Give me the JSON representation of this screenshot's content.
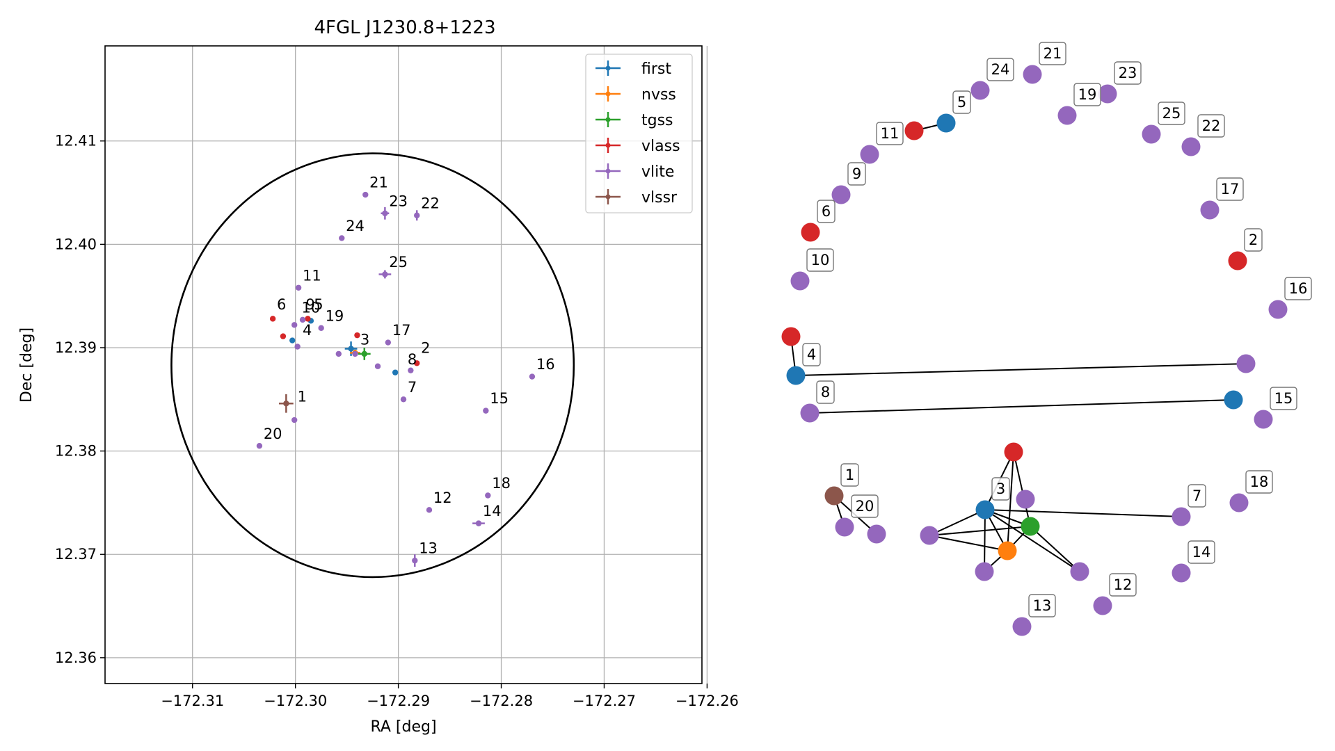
{
  "colors": {
    "first": "#1f77b4",
    "nvss": "#ff7f0e",
    "tgss": "#2ca02c",
    "vlass": "#d62728",
    "vlite": "#9467bd",
    "vlssr": "#8c564b"
  },
  "chart_data": [
    {
      "type": "scatter",
      "title": "4FGL J1230.8+1223",
      "xlabel": "RA [deg]",
      "ylabel": "Dec [deg]",
      "xlim": [
        -172.3185,
        -172.2605
      ],
      "ylim": [
        12.3575,
        12.4192
      ],
      "xticks": [
        -172.31,
        -172.3,
        -172.29,
        -172.28,
        -172.27,
        -172.26
      ],
      "xtick_labels": [
        "−172.31",
        "−172.30",
        "−172.29",
        "−172.28",
        "−172.27",
        "−172.26"
      ],
      "yticks": [
        12.36,
        12.37,
        12.38,
        12.39,
        12.4,
        12.41
      ],
      "ytick_labels": [
        "12.36",
        "12.37",
        "12.38",
        "12.39",
        "12.40",
        "12.41"
      ],
      "grid": true,
      "legend": "top-right",
      "ellipse": {
        "center": [
          -172.2925,
          12.3883
        ],
        "semi_axis_ra": 0.01955,
        "semi_axis_dec": 0.0205
      },
      "series": [
        {
          "name": "first",
          "points": [
            {
              "x": -172.2946,
              "y": 12.3899,
              "xerr": 0.0006,
              "yerr": 0.0007
            },
            {
              "x": -172.2903,
              "y": 12.3876
            },
            {
              "x": -172.3003,
              "y": 12.3907
            },
            {
              "x": -172.2985,
              "y": 12.3926
            }
          ]
        },
        {
          "name": "nvss",
          "points": [
            {
              "x": -172.2942,
              "y": 12.3895,
              "xerr": 0.0005,
              "yerr": 0.0003
            }
          ]
        },
        {
          "name": "tgss",
          "points": [
            {
              "x": -172.2933,
              "y": 12.3894,
              "xerr": 0.0006,
              "yerr": 0.0006
            }
          ]
        },
        {
          "name": "vlass",
          "points": [
            {
              "x": -172.294,
              "y": 12.3912
            },
            {
              "x": -172.2882,
              "y": 12.3885
            },
            {
              "x": -172.3012,
              "y": 12.3911
            },
            {
              "x": -172.3022,
              "y": 12.3928
            },
            {
              "x": -172.2988,
              "y": 12.3928
            }
          ]
        },
        {
          "name": "vlite",
          "points": [
            {
              "x": -172.2942,
              "y": 12.3894
            },
            {
              "x": -172.2958,
              "y": 12.3894
            },
            {
              "x": -172.292,
              "y": 12.3882
            },
            {
              "x": -172.2888,
              "y": 12.3878
            },
            {
              "x": -172.2998,
              "y": 12.3901
            },
            {
              "x": -172.3001,
              "y": 12.383
            },
            {
              "x": -172.3035,
              "y": 12.3805
            },
            {
              "x": -172.2895,
              "y": 12.385
            },
            {
              "x": -172.2815,
              "y": 12.3839
            },
            {
              "x": -172.277,
              "y": 12.3872
            },
            {
              "x": -172.291,
              "y": 12.3905
            },
            {
              "x": -172.2975,
              "y": 12.3919
            },
            {
              "x": -172.2997,
              "y": 12.3958
            },
            {
              "x": -172.3001,
              "y": 12.3922
            },
            {
              "x": -172.2993,
              "y": 12.3927
            },
            {
              "x": -172.2913,
              "y": 12.3971,
              "xerr": 0.0006,
              "yerr": 0.0004
            },
            {
              "x": -172.2955,
              "y": 12.4006
            },
            {
              "x": -172.2913,
              "y": 12.403,
              "xerr": 0.0004,
              "yerr": 0.0006
            },
            {
              "x": -172.2882,
              "y": 12.4028,
              "yerr": 0.0005
            },
            {
              "x": -172.2932,
              "y": 12.4048
            },
            {
              "x": -172.287,
              "y": 12.3743
            },
            {
              "x": -172.2813,
              "y": 12.3757
            },
            {
              "x": -172.2822,
              "y": 12.373,
              "xerr": 0.0006
            },
            {
              "x": -172.2884,
              "y": 12.3694,
              "yerr": 0.0006
            }
          ]
        },
        {
          "name": "vlssr",
          "points": [
            {
              "x": -172.3009,
              "y": 12.3846,
              "xerr": 0.0007,
              "yerr": 0.0009
            }
          ]
        }
      ],
      "annotations": [
        {
          "text": "1",
          "x": -172.2998,
          "y": 12.3848
        },
        {
          "text": "2",
          "x": -172.2878,
          "y": 12.3895
        },
        {
          "text": "3",
          "x": -172.2937,
          "y": 12.3903
        },
        {
          "text": "4",
          "x": -172.2993,
          "y": 12.3912
        },
        {
          "text": "5",
          "x": -172.2982,
          "y": 12.3937
        },
        {
          "text": "6",
          "x": -172.3018,
          "y": 12.3937
        },
        {
          "text": "7",
          "x": -172.2891,
          "y": 12.3857
        },
        {
          "text": "8",
          "x": -172.2891,
          "y": 12.3884
        },
        {
          "text": "9",
          "x": -172.299,
          "y": 12.3937
        },
        {
          "text": "10",
          "x": -172.2994,
          "y": 12.3934
        },
        {
          "text": "11",
          "x": -172.2993,
          "y": 12.3965
        },
        {
          "text": "12",
          "x": -172.2866,
          "y": 12.375
        },
        {
          "text": "13",
          "x": -172.288,
          "y": 12.3701
        },
        {
          "text": "14",
          "x": -172.2818,
          "y": 12.3737
        },
        {
          "text": "15",
          "x": -172.2811,
          "y": 12.3846
        },
        {
          "text": "16",
          "x": -172.2766,
          "y": 12.3879
        },
        {
          "text": "17",
          "x": -172.2906,
          "y": 12.3912
        },
        {
          "text": "18",
          "x": -172.2809,
          "y": 12.3764
        },
        {
          "text": "19",
          "x": -172.2971,
          "y": 12.3926
        },
        {
          "text": "20",
          "x": -172.3031,
          "y": 12.3812
        },
        {
          "text": "21",
          "x": -172.2928,
          "y": 12.4055
        },
        {
          "text": "22",
          "x": -172.2878,
          "y": 12.4035
        },
        {
          "text": "23",
          "x": -172.2909,
          "y": 12.4037
        },
        {
          "text": "24",
          "x": -172.2951,
          "y": 12.4013
        },
        {
          "text": "25",
          "x": -172.2909,
          "y": 12.3978
        }
      ]
    },
    {
      "type": "network",
      "nodes": [
        {
          "label": "21",
          "survey": "vlite"
        },
        {
          "label": "24",
          "survey": "vlite"
        },
        {
          "label": "23",
          "survey": "vlite"
        },
        {
          "label": "19",
          "survey": "vlite"
        },
        {
          "label": "5",
          "survey": "first"
        },
        {
          "label": "",
          "survey": "vlass"
        },
        {
          "label": "11",
          "survey": "vlite"
        },
        {
          "label": "25",
          "survey": "vlite"
        },
        {
          "label": "22",
          "survey": "vlite"
        },
        {
          "label": "9",
          "survey": "vlite"
        },
        {
          "label": "17",
          "survey": "vlite"
        },
        {
          "label": "6",
          "survey": "vlass"
        },
        {
          "label": "2",
          "survey": "vlass"
        },
        {
          "label": "10",
          "survey": "vlite"
        },
        {
          "label": "16",
          "survey": "vlite"
        },
        {
          "label": "",
          "survey": "vlass"
        },
        {
          "label": "4",
          "survey": "first"
        },
        {
          "label": "",
          "survey": "vlite"
        },
        {
          "label": "8",
          "survey": "vlite"
        },
        {
          "label": "",
          "survey": "first"
        },
        {
          "label": "15",
          "survey": "vlite"
        },
        {
          "label": "",
          "survey": "vlass"
        },
        {
          "label": "1",
          "survey": "vlssr"
        },
        {
          "label": "20",
          "survey": "vlite"
        },
        {
          "label": "",
          "survey": "vlite"
        },
        {
          "label": "",
          "survey": "vlite"
        },
        {
          "label": "3",
          "survey": "first"
        },
        {
          "label": "",
          "survey": "vlite"
        },
        {
          "label": "",
          "survey": "tgss"
        },
        {
          "label": "",
          "survey": "nvss"
        },
        {
          "label": "",
          "survey": "vlite"
        },
        {
          "label": "",
          "survey": "vlite"
        },
        {
          "label": "7",
          "survey": "vlite"
        },
        {
          "label": "18",
          "survey": "vlite"
        },
        {
          "label": "14",
          "survey": "vlite"
        },
        {
          "label": "12",
          "survey": "vlite"
        },
        {
          "label": "13",
          "survey": "vlite"
        }
      ]
    }
  ]
}
